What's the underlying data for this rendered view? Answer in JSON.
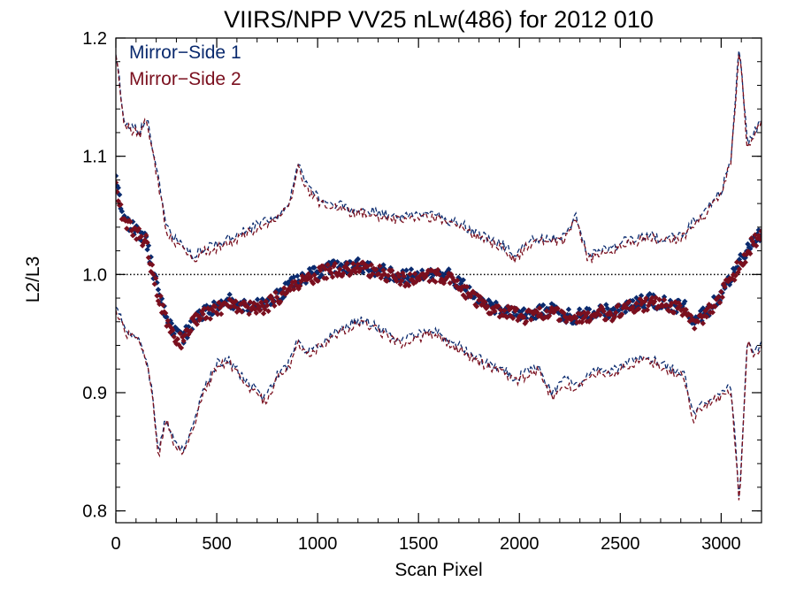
{
  "chart_data": {
    "type": "line",
    "title": "VIIRS/NPP VV25 nLw(486) for 2012 010",
    "xlabel": "Scan Pixel",
    "ylabel": "L2/L3",
    "xlim": [
      0,
      3200
    ],
    "ylim": [
      0.79,
      1.2
    ],
    "xticks": [
      0,
      500,
      1000,
      1500,
      2000,
      2500,
      3000
    ],
    "xtick_labels": [
      "0",
      "500",
      "1000",
      "1500",
      "2000",
      "2500",
      "3000"
    ],
    "yticks": [
      0.8,
      0.9,
      1.0,
      1.1,
      1.2
    ],
    "ytick_labels": [
      "0.8",
      "0.9",
      "1.0",
      "1.1",
      "1.2"
    ],
    "grid": false,
    "legend_position": "top-left",
    "reference_line": {
      "y": 1.0,
      "style": "dotted",
      "color": "#000000"
    },
    "series": [
      {
        "name": "Mirror−Side 1",
        "color": "#0a2a6e",
        "x": [
          0,
          40,
          80,
          120,
          150,
          180,
          210,
          250,
          290,
          330,
          380,
          430,
          500,
          560,
          620,
          680,
          740,
          800,
          860,
          900,
          950,
          1000,
          1060,
          1120,
          1180,
          1240,
          1300,
          1360,
          1420,
          1480,
          1540,
          1600,
          1660,
          1720,
          1780,
          1850,
          1920,
          1980,
          2040,
          2100,
          2160,
          2220,
          2280,
          2340,
          2400,
          2460,
          2520,
          2580,
          2640,
          2700,
          2760,
          2820,
          2860,
          2900,
          2950,
          3000,
          3050,
          3090,
          3130,
          3160,
          3200
        ],
        "mean": [
          1.08,
          1.045,
          1.04,
          1.035,
          1.03,
          1.005,
          0.985,
          0.962,
          0.95,
          0.945,
          0.96,
          0.968,
          0.972,
          0.978,
          0.975,
          0.972,
          0.975,
          0.982,
          0.99,
          0.995,
          0.998,
          1.002,
          1.005,
          1.006,
          1.008,
          1.006,
          1.004,
          1.0,
          0.998,
          0.999,
          1.0,
          1.002,
          0.998,
          0.99,
          0.98,
          0.975,
          0.97,
          0.968,
          0.966,
          0.968,
          0.97,
          0.966,
          0.964,
          0.967,
          0.97,
          0.968,
          0.972,
          0.975,
          0.978,
          0.976,
          0.974,
          0.972,
          0.958,
          0.965,
          0.972,
          0.985,
          0.998,
          1.01,
          1.02,
          1.03,
          1.035
        ],
        "upper": [
          1.19,
          1.13,
          1.125,
          1.12,
          1.135,
          1.11,
          1.08,
          1.04,
          1.03,
          1.025,
          1.015,
          1.022,
          1.025,
          1.03,
          1.035,
          1.04,
          1.045,
          1.05,
          1.06,
          1.095,
          1.075,
          1.065,
          1.06,
          1.058,
          1.055,
          1.055,
          1.052,
          1.05,
          1.048,
          1.05,
          1.052,
          1.05,
          1.045,
          1.042,
          1.035,
          1.03,
          1.025,
          1.015,
          1.028,
          1.03,
          1.03,
          1.032,
          1.05,
          1.015,
          1.02,
          1.022,
          1.028,
          1.03,
          1.035,
          1.03,
          1.032,
          1.035,
          1.045,
          1.05,
          1.06,
          1.07,
          1.1,
          1.195,
          1.11,
          1.12,
          1.13
        ],
        "lower": [
          0.975,
          0.955,
          0.95,
          0.945,
          0.93,
          0.9,
          0.848,
          0.88,
          0.86,
          0.852,
          0.87,
          0.9,
          0.925,
          0.928,
          0.915,
          0.905,
          0.895,
          0.915,
          0.925,
          0.945,
          0.935,
          0.94,
          0.948,
          0.955,
          0.96,
          0.962,
          0.955,
          0.948,
          0.945,
          0.948,
          0.952,
          0.95,
          0.942,
          0.938,
          0.93,
          0.925,
          0.92,
          0.912,
          0.918,
          0.922,
          0.898,
          0.912,
          0.905,
          0.915,
          0.92,
          0.918,
          0.925,
          0.928,
          0.93,
          0.925,
          0.92,
          0.915,
          0.88,
          0.89,
          0.895,
          0.9,
          0.905,
          0.81,
          0.945,
          0.935,
          0.94
        ]
      },
      {
        "name": "Mirror−Side 2",
        "color": "#7a0f1e",
        "x": [
          0,
          40,
          80,
          120,
          150,
          180,
          210,
          250,
          290,
          330,
          380,
          430,
          500,
          560,
          620,
          680,
          740,
          800,
          860,
          900,
          950,
          1000,
          1060,
          1120,
          1180,
          1240,
          1300,
          1360,
          1420,
          1480,
          1540,
          1600,
          1660,
          1720,
          1780,
          1850,
          1920,
          1980,
          2040,
          2100,
          2160,
          2220,
          2280,
          2340,
          2400,
          2460,
          2520,
          2580,
          2640,
          2700,
          2760,
          2820,
          2860,
          2900,
          2950,
          3000,
          3050,
          3090,
          3130,
          3160,
          3200
        ],
        "mean": [
          1.078,
          1.043,
          1.038,
          1.032,
          1.028,
          1.003,
          0.983,
          0.96,
          0.948,
          0.943,
          0.958,
          0.966,
          0.97,
          0.976,
          0.973,
          0.97,
          0.973,
          0.98,
          0.988,
          0.993,
          0.996,
          1.0,
          1.003,
          1.004,
          1.006,
          1.004,
          1.002,
          0.998,
          0.996,
          0.997,
          0.998,
          1.0,
          0.996,
          0.988,
          0.978,
          0.973,
          0.968,
          0.966,
          0.964,
          0.966,
          0.968,
          0.964,
          0.962,
          0.965,
          0.968,
          0.966,
          0.97,
          0.973,
          0.976,
          0.974,
          0.972,
          0.97,
          0.956,
          0.963,
          0.97,
          0.983,
          0.996,
          1.008,
          1.018,
          1.028,
          1.033
        ],
        "upper": [
          1.187,
          1.128,
          1.122,
          1.117,
          1.132,
          1.107,
          1.077,
          1.037,
          1.027,
          1.022,
          1.012,
          1.019,
          1.022,
          1.027,
          1.032,
          1.037,
          1.042,
          1.047,
          1.057,
          1.092,
          1.072,
          1.062,
          1.057,
          1.055,
          1.052,
          1.052,
          1.049,
          1.047,
          1.045,
          1.047,
          1.049,
          1.047,
          1.042,
          1.039,
          1.032,
          1.027,
          1.022,
          1.012,
          1.025,
          1.027,
          1.027,
          1.029,
          1.047,
          1.012,
          1.017,
          1.019,
          1.025,
          1.027,
          1.032,
          1.027,
          1.029,
          1.032,
          1.042,
          1.047,
          1.057,
          1.067,
          1.097,
          1.192,
          1.107,
          1.117,
          1.127
        ],
        "lower": [
          0.972,
          0.952,
          0.947,
          0.942,
          0.927,
          0.897,
          0.845,
          0.877,
          0.857,
          0.849,
          0.867,
          0.897,
          0.922,
          0.925,
          0.912,
          0.902,
          0.892,
          0.912,
          0.922,
          0.942,
          0.932,
          0.937,
          0.945,
          0.952,
          0.957,
          0.959,
          0.952,
          0.945,
          0.942,
          0.945,
          0.949,
          0.947,
          0.939,
          0.935,
          0.927,
          0.922,
          0.917,
          0.909,
          0.915,
          0.919,
          0.895,
          0.909,
          0.902,
          0.912,
          0.917,
          0.915,
          0.922,
          0.925,
          0.927,
          0.922,
          0.917,
          0.912,
          0.877,
          0.887,
          0.892,
          0.897,
          0.902,
          0.807,
          0.942,
          0.932,
          0.937
        ]
      }
    ]
  }
}
